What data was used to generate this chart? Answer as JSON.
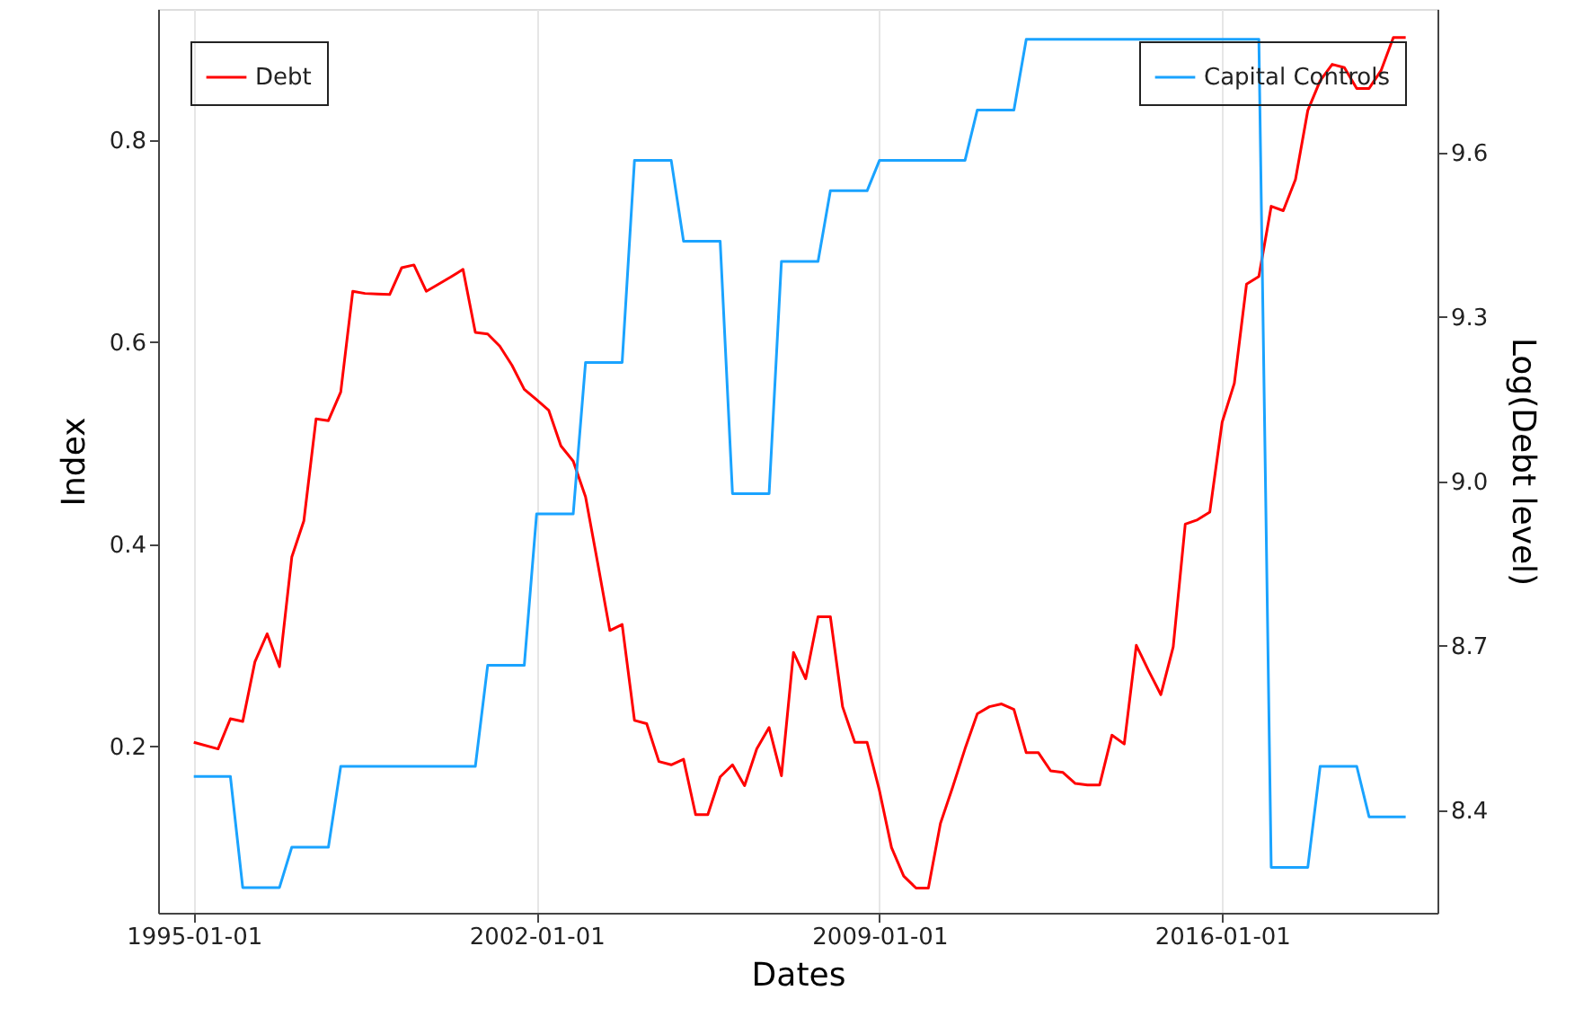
{
  "chart_data": {
    "type": "line",
    "xlabel": "Dates",
    "ylabel": "Index",
    "y2label": "Log(Debt level)",
    "xlim": [
      "1994-04-10",
      "2020-05-25"
    ],
    "xticks": [
      "1995-01-01",
      "2002-01-01",
      "2009-01-01",
      "2016-01-01"
    ],
    "ylim": [
      0.035,
      0.93
    ],
    "yticks": [
      0.2,
      0.4,
      0.6,
      0.8
    ],
    "y2lim": [
      8.213,
      9.862
    ],
    "y2ticks": [
      8.4,
      8.7,
      {
        "value": 9,
        "label": "9.0"
      },
      9.3,
      9.6
    ],
    "grid": "x",
    "legend": "top",
    "marker": "none",
    "line_style": "solid",
    "series": [
      {
        "name": "Debt",
        "color": "#ff0000",
        "axis": "y2",
        "x": [
          "1995-01",
          "1995-07",
          "1995-10",
          "1996-01",
          "1996-04",
          "1996-07",
          "1996-10",
          "1997-01",
          "1997-04",
          "1997-07",
          "1997-10",
          "1998-01",
          "1998-04",
          "1998-07",
          "1998-10",
          "1999-01",
          "1999-04",
          "1999-07",
          "1999-10",
          "2000-01",
          "2000-04",
          "2000-07",
          "2000-10",
          "2001-01",
          "2001-04",
          "2001-07",
          "2001-10",
          "2002-01",
          "2002-04",
          "2002-07",
          "2002-10",
          "2003-01",
          "2003-04",
          "2003-07",
          "2003-10",
          "2004-01",
          "2004-04",
          "2004-07",
          "2004-10",
          "2005-01",
          "2005-04",
          "2005-07",
          "2005-10",
          "2006-01",
          "2006-04",
          "2006-07",
          "2006-10",
          "2007-01",
          "2007-04",
          "2007-07",
          "2007-10",
          "2008-01",
          "2008-04",
          "2008-07",
          "2008-10",
          "2009-01",
          "2009-04",
          "2009-07",
          "2009-10",
          "2010-01",
          "2010-04",
          "2010-07",
          "2010-10",
          "2011-01",
          "2011-04",
          "2011-07",
          "2011-10",
          "2012-01",
          "2012-04",
          "2012-07",
          "2012-10",
          "2013-01",
          "2013-04",
          "2013-07",
          "2013-10",
          "2014-01",
          "2014-04",
          "2014-07",
          "2014-10",
          "2015-01",
          "2015-04",
          "2015-07",
          "2015-10",
          "2016-01",
          "2016-04",
          "2016-07",
          "2016-10",
          "2017-01",
          "2017-04",
          "2017-07",
          "2017-10",
          "2018-01",
          "2018-04",
          "2018-07",
          "2018-10",
          "2019-01",
          "2019-04",
          "2019-07",
          "2019-10"
        ],
        "values": [
          8.524,
          8.512,
          8.567,
          8.562,
          8.671,
          8.722,
          8.662,
          8.862,
          8.928,
          9.114,
          9.111,
          9.163,
          9.347,
          9.343,
          9.342,
          9.341,
          9.39,
          9.395,
          9.347,
          9.36,
          9.373,
          9.387,
          9.272,
          9.269,
          9.247,
          9.212,
          9.168,
          9.149,
          9.13,
          9.065,
          9.037,
          8.972,
          8.852,
          8.728,
          8.739,
          8.564,
          8.558,
          8.489,
          8.483,
          8.493,
          8.392,
          8.392,
          8.461,
          8.483,
          8.445,
          8.512,
          8.551,
          8.463,
          8.688,
          8.64,
          8.753,
          8.753,
          8.589,
          8.524,
          8.524,
          8.436,
          8.332,
          8.28,
          8.258,
          8.258,
          8.376,
          8.442,
          8.512,
          8.576,
          8.589,
          8.594,
          8.584,
          8.505,
          8.505,
          8.472,
          8.469,
          8.449,
          8.446,
          8.446,
          8.537,
          8.521,
          8.701,
          8.655,
          8.611,
          8.698,
          8.922,
          8.93,
          8.944,
          9.108,
          9.179,
          9.36,
          9.374,
          9.502,
          9.494,
          9.551,
          9.677,
          9.731,
          9.761,
          9.755,
          9.717,
          9.717,
          9.75,
          9.81,
          9.81
        ]
      },
      {
        "name": "Capital Controls",
        "color": "#1aa3ff",
        "axis": "y",
        "x": [
          "1995-01",
          "1995-10",
          "1996-01",
          "1996-10",
          "1997-01",
          "1997-10",
          "1998-01",
          "2000-10",
          "2001-01",
          "2001-10",
          "2002-01",
          "2002-10",
          "2003-01",
          "2003-10",
          "2004-01",
          "2004-10",
          "2005-01",
          "2005-10",
          "2006-01",
          "2006-10",
          "2007-01",
          "2007-10",
          "2008-01",
          "2008-10",
          "2009-01",
          "2010-10",
          "2011-01",
          "2011-10",
          "2012-01",
          "2016-10",
          "2017-01",
          "2017-10",
          "2018-01",
          "2018-10",
          "2019-01",
          "2019-10"
        ],
        "values": [
          0.17,
          0.17,
          0.06,
          0.06,
          0.1,
          0.1,
          0.18,
          0.18,
          0.28,
          0.28,
          0.43,
          0.43,
          0.58,
          0.58,
          0.78,
          0.78,
          0.7,
          0.7,
          0.45,
          0.45,
          0.68,
          0.68,
          0.75,
          0.75,
          0.78,
          0.78,
          0.83,
          0.83,
          0.9,
          0.9,
          0.08,
          0.08,
          0.18,
          0.18,
          0.13,
          0.13
        ]
      }
    ]
  }
}
